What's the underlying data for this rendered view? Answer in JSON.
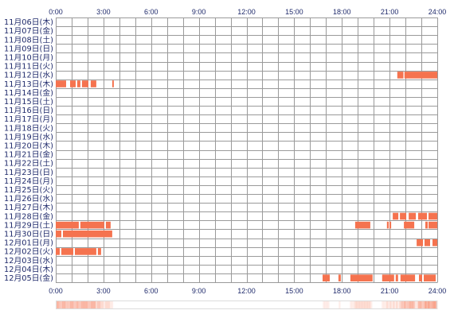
{
  "chart_data": {
    "type": "heatmap",
    "x_ticks": [
      "0:00",
      "3:00",
      "6:00",
      "9:00",
      "12:00",
      "15:00",
      "18:00",
      "21:00",
      "24:00"
    ],
    "x_range": [
      "0:00",
      "24:00"
    ],
    "grid": true,
    "rows": [
      {
        "label": "11月06日(木)",
        "segments": []
      },
      {
        "label": "11月07日(金)",
        "segments": []
      },
      {
        "label": "11月08日(土)",
        "segments": []
      },
      {
        "label": "11月09日(日)",
        "segments": []
      },
      {
        "label": "11月10日(月)",
        "segments": []
      },
      {
        "label": "11月11日(火)",
        "segments": []
      },
      {
        "label": "11月12日(水)",
        "segments": [
          [
            "21:29",
            "21:52"
          ],
          [
            "21:56",
            "24:00"
          ]
        ]
      },
      {
        "label": "11月13日(木)",
        "segments": [
          [
            "0:00",
            "0:39"
          ],
          [
            "0:54",
            "1:15"
          ],
          [
            "1:21",
            "1:33"
          ],
          [
            "1:39",
            "2:03"
          ],
          [
            "2:12",
            "2:33"
          ],
          [
            "3:33",
            "3:39"
          ]
        ]
      },
      {
        "label": "11月14日(金)",
        "segments": []
      },
      {
        "label": "11月15日(土)",
        "segments": []
      },
      {
        "label": "11月16日(日)",
        "segments": []
      },
      {
        "label": "11月17日(月)",
        "segments": []
      },
      {
        "label": "11月18日(火)",
        "segments": []
      },
      {
        "label": "11月19日(水)",
        "segments": []
      },
      {
        "label": "11月20日(木)",
        "segments": []
      },
      {
        "label": "11月21日(金)",
        "segments": []
      },
      {
        "label": "11月22日(土)",
        "segments": []
      },
      {
        "label": "11月23日(日)",
        "segments": []
      },
      {
        "label": "11月24日(月)",
        "segments": []
      },
      {
        "label": "11月25日(火)",
        "segments": []
      },
      {
        "label": "11月26日(水)",
        "segments": []
      },
      {
        "label": "11月27日(木)",
        "segments": []
      },
      {
        "label": "11月28日(金)",
        "segments": [
          [
            "21:12",
            "21:33"
          ],
          [
            "21:39",
            "22:03"
          ],
          [
            "22:12",
            "22:39"
          ],
          [
            "22:48",
            "23:21"
          ],
          [
            "23:27",
            "24:00"
          ]
        ]
      },
      {
        "label": "11月29日(土)",
        "segments": [
          [
            "0:00",
            "1:27"
          ],
          [
            "1:33",
            "3:03"
          ],
          [
            "3:09",
            "3:27"
          ],
          [
            "18:50",
            "19:47"
          ],
          [
            "20:50",
            "20:57"
          ],
          [
            "21:00",
            "21:06"
          ],
          [
            "21:54",
            "22:33"
          ],
          [
            "23:15",
            "23:24"
          ],
          [
            "23:27",
            "24:00"
          ]
        ]
      },
      {
        "label": "11月30日(日)",
        "segments": [
          [
            "0:00",
            "0:21"
          ],
          [
            "0:27",
            "3:33"
          ]
        ]
      },
      {
        "label": "12月01日(月)",
        "segments": [
          [
            "22:42",
            "23:06"
          ],
          [
            "23:12",
            "23:33"
          ],
          [
            "23:42",
            "24:00"
          ]
        ]
      },
      {
        "label": "12月02日(火)",
        "segments": [
          [
            "0:00",
            "0:15"
          ],
          [
            "0:21",
            "1:06"
          ],
          [
            "1:12",
            "2:33"
          ],
          [
            "2:39",
            "2:51"
          ]
        ]
      },
      {
        "label": "12月03日(水)",
        "segments": []
      },
      {
        "label": "12月04日(木)",
        "segments": []
      },
      {
        "label": "12月05日(金)",
        "segments": [
          [
            "16:47",
            "17:14"
          ],
          [
            "17:47",
            "17:56"
          ],
          [
            "18:32",
            "19:56"
          ],
          [
            "20:32",
            "21:17"
          ],
          [
            "21:23",
            "21:32"
          ],
          [
            "21:41",
            "22:36"
          ],
          [
            "22:51",
            "23:03"
          ],
          [
            "23:09",
            "23:54"
          ]
        ]
      }
    ]
  },
  "colors": {
    "bar": "#f5734f",
    "grid": "#9a9a9a",
    "label": "#1f2a6b",
    "strip_border": "#dcdcdc"
  }
}
